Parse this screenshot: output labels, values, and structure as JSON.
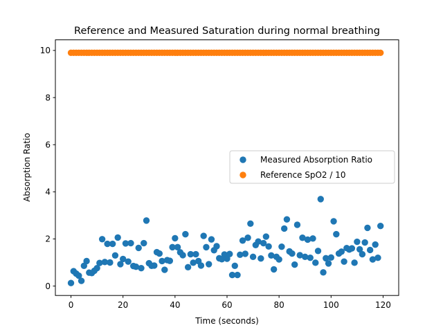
{
  "chart_data": {
    "type": "scatter",
    "title": "Reference and Measured Saturation during normal breathing",
    "xlabel": "Time (seconds)",
    "ylabel": "Absorption Ratio",
    "xlim": [
      -6,
      126
    ],
    "ylim": [
      -0.4,
      10.45
    ],
    "xticks": [
      0,
      20,
      40,
      60,
      80,
      100,
      120
    ],
    "yticks": [
      0,
      2,
      4,
      6,
      8,
      10
    ],
    "legend_position": "center-right",
    "grid": false,
    "series": [
      {
        "name": "Measured Absorption Ratio",
        "color": "#1f77b4",
        "x": [
          0,
          1,
          2,
          3,
          4,
          5,
          6,
          7,
          8,
          9,
          10,
          11,
          12,
          13,
          14,
          15,
          16,
          17,
          18,
          19,
          20,
          21,
          22,
          23,
          24,
          25,
          26,
          27,
          28,
          29,
          30,
          31,
          32,
          33,
          34,
          35,
          36,
          37,
          38,
          39,
          40,
          41,
          42,
          43,
          44,
          45,
          46,
          47,
          48,
          49,
          50,
          51,
          52,
          53,
          54,
          55,
          56,
          57,
          58,
          59,
          60,
          61,
          62,
          63,
          64,
          65,
          66,
          67,
          68,
          69,
          70,
          71,
          72,
          73,
          74,
          75,
          76,
          77,
          78,
          79,
          80,
          81,
          82,
          83,
          84,
          85,
          86,
          87,
          88,
          89,
          90,
          91,
          92,
          93,
          94,
          95,
          96,
          97,
          98,
          99,
          100,
          101,
          102,
          103,
          104,
          105,
          106,
          107,
          108,
          109,
          110,
          111,
          112,
          113,
          114,
          115,
          116,
          117,
          118,
          119
        ],
        "y": [
          0.13,
          0.63,
          0.53,
          0.44,
          0.22,
          0.86,
          1.06,
          0.57,
          0.55,
          0.65,
          0.76,
          0.98,
          1.99,
          1.02,
          1.79,
          1.0,
          1.79,
          1.3,
          2.06,
          0.93,
          1.15,
          1.81,
          1.04,
          1.82,
          0.85,
          0.82,
          1.62,
          0.76,
          1.82,
          2.78,
          0.97,
          0.86,
          0.87,
          1.44,
          1.38,
          1.06,
          0.69,
          1.1,
          1.07,
          1.65,
          2.03,
          1.65,
          1.43,
          1.31,
          2.2,
          0.8,
          1.35,
          0.99,
          1.35,
          1.06,
          0.87,
          2.13,
          1.65,
          0.93,
          1.98,
          1.52,
          1.69,
          1.18,
          1.14,
          1.34,
          1.16,
          1.36,
          0.47,
          0.86,
          0.47,
          1.33,
          1.93,
          1.37,
          2.05,
          2.65,
          1.24,
          1.74,
          1.89,
          1.17,
          1.82,
          2.1,
          1.68,
          1.3,
          0.71,
          1.24,
          1.13,
          1.67,
          2.44,
          2.83,
          1.47,
          1.38,
          0.91,
          2.6,
          1.31,
          2.05,
          1.24,
          1.97,
          1.2,
          2.02,
          0.99,
          1.49,
          3.69,
          0.58,
          1.18,
          0.96,
          1.21,
          2.75,
          2.2,
          1.38,
          1.46,
          1.04,
          1.61,
          1.55,
          1.6,
          0.99,
          1.88,
          1.56,
          1.35,
          1.85,
          2.47,
          1.53,
          1.13,
          1.76,
          1.2,
          2.55
        ]
      },
      {
        "name": "Reference SpO2 / 10",
        "color": "#ff7f0e",
        "x_start": 0,
        "x_end": 119,
        "x_step": 1,
        "constant_y": 9.9
      }
    ]
  }
}
